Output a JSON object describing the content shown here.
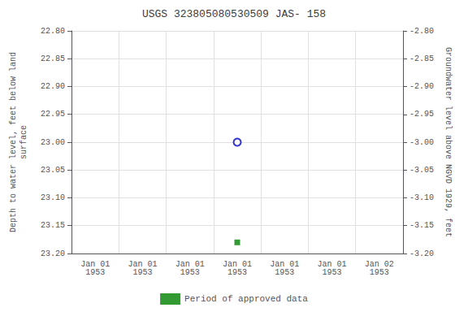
{
  "chart_data": {
    "type": "scatter",
    "title": "USGS 323805080530509 JAS- 158",
    "ylabel": "Depth to water level, feet below land\nsurface",
    "y2label": "Groundwater level above NGVD 1929, feet",
    "categories": [
      "Jan 01\n1953",
      "Jan 01\n1953",
      "Jan 01\n1953",
      "Jan 01\n1953",
      "Jan 01\n1953",
      "Jan 01\n1953",
      "Jan 02\n1953"
    ],
    "series": [
      {
        "values": [
          null,
          null,
          null,
          23.0,
          null,
          null,
          null
        ],
        "color": "#0000cc",
        "marker": "open_circle"
      },
      {
        "name": "Period of approved data",
        "values": [
          null,
          null,
          null,
          23.18,
          null,
          null,
          null
        ],
        "color": "#008000",
        "marker": "square"
      }
    ],
    "ylim": [
      23.2,
      22.8
    ],
    "yticks": [
      {
        "value": 22.8,
        "label": "22.80"
      },
      22.85,
      {
        "value": 22.9,
        "label": "22.90"
      },
      22.95,
      {
        "value": 23,
        "label": "23.00"
      },
      23.05,
      {
        "value": 23.1,
        "label": "23.10"
      },
      23.15,
      {
        "value": 23.2,
        "label": "23.20"
      }
    ],
    "y2lim": [
      -3.2,
      -2.8
    ],
    "y2ticks": [
      {
        "value": -2.8,
        "label": "-2.80"
      },
      -2.85,
      {
        "value": -2.9,
        "label": "-2.90"
      },
      -2.95,
      {
        "value": -3,
        "label": "-3.00"
      },
      -3.05,
      {
        "value": -3.1,
        "label": "-3.10"
      },
      -3.15,
      {
        "value": -3.2,
        "label": "-3.20"
      }
    ],
    "grid": true,
    "legend": "bottom"
  }
}
